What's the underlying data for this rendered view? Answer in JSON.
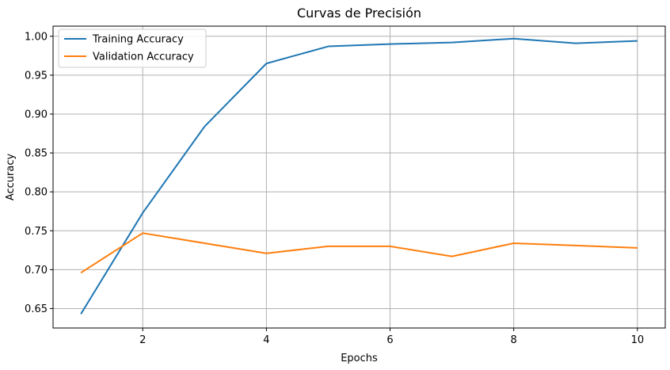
{
  "chart_data": {
    "type": "line",
    "title": "Curvas de Precisión",
    "xlabel": "Epochs",
    "ylabel": "Accuracy",
    "x": [
      1,
      2,
      3,
      4,
      5,
      6,
      7,
      8,
      9,
      10
    ],
    "xlim": [
      0.55,
      10.45
    ],
    "ylim": [
      0.625,
      1.013
    ],
    "xticks": [
      2,
      4,
      6,
      8,
      10
    ],
    "yticks": [
      0.65,
      0.7,
      0.75,
      0.8,
      0.85,
      0.9,
      0.95,
      1.0
    ],
    "grid": true,
    "legend_position": "top-left",
    "series": [
      {
        "name": "Training Accuracy",
        "color": "#1f77b4",
        "values": [
          0.643,
          0.773,
          0.884,
          0.965,
          0.987,
          0.99,
          0.992,
          0.997,
          0.991,
          0.994
        ]
      },
      {
        "name": "Validation Accuracy",
        "color": "#ff7f0e",
        "values": [
          0.696,
          0.747,
          0.734,
          0.721,
          0.73,
          0.73,
          0.717,
          0.734,
          0.731,
          0.728
        ]
      }
    ]
  }
}
